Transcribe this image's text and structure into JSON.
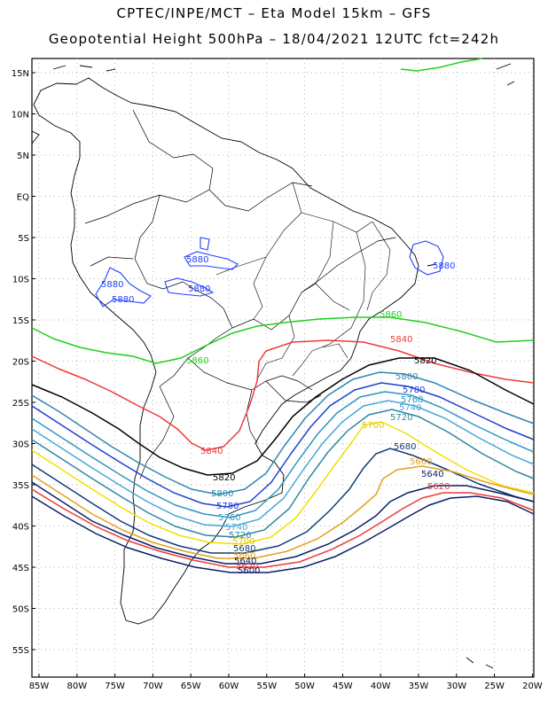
{
  "header": {
    "line1": "CPTEC/INPE/MCT –  Eta Model 15km – GFS",
    "line2": "Geopotential Height 500hPa – 18/04/2021 12UTC fct=242h"
  },
  "axes": {
    "lat_labels": [
      "15N",
      "10N",
      "5N",
      "EQ",
      "5S",
      "10S",
      "15S",
      "20S",
      "25S",
      "30S",
      "35S",
      "40S",
      "45S",
      "50S",
      "55S"
    ],
    "lon_labels": [
      "85W",
      "80W",
      "75W",
      "70W",
      "65W",
      "60W",
      "55W",
      "50W",
      "45W",
      "40W",
      "35W",
      "30W",
      "25W",
      "20W"
    ]
  },
  "contours": [
    {
      "value": 5880,
      "label": "5880",
      "color": "#1f3fff"
    },
    {
      "value": 5860,
      "label": "5860",
      "color": "#1fcf1f"
    },
    {
      "value": 5840,
      "label": "5840",
      "color": "#ee3a3a"
    },
    {
      "value": 5820,
      "label": "5820",
      "color": "#000000"
    },
    {
      "value": 5800,
      "label": "5800",
      "color": "#2f86b0"
    },
    {
      "value": 5780,
      "label": "5780",
      "color": "#1f3fd0"
    },
    {
      "value": 5760,
      "label": "5760",
      "color": "#2f96c0"
    },
    {
      "value": 5740,
      "label": "5740",
      "color": "#47a8d8"
    },
    {
      "value": 5720,
      "label": "5720",
      "color": "#2f86a0"
    },
    {
      "value": 5700,
      "label": "5700",
      "color": "#f0e000"
    },
    {
      "value": 5680,
      "label": "5680",
      "color": "#123a7a"
    },
    {
      "value": 5660,
      "label": "5660",
      "color": "#e3a020"
    },
    {
      "value": 5640,
      "label": "5640",
      "color": "#0a1f66"
    },
    {
      "value": 5620,
      "label": "5620",
      "color": "#ee3a3a"
    },
    {
      "value": 5600,
      "label": "5600",
      "color": "#0a1f66"
    }
  ]
}
